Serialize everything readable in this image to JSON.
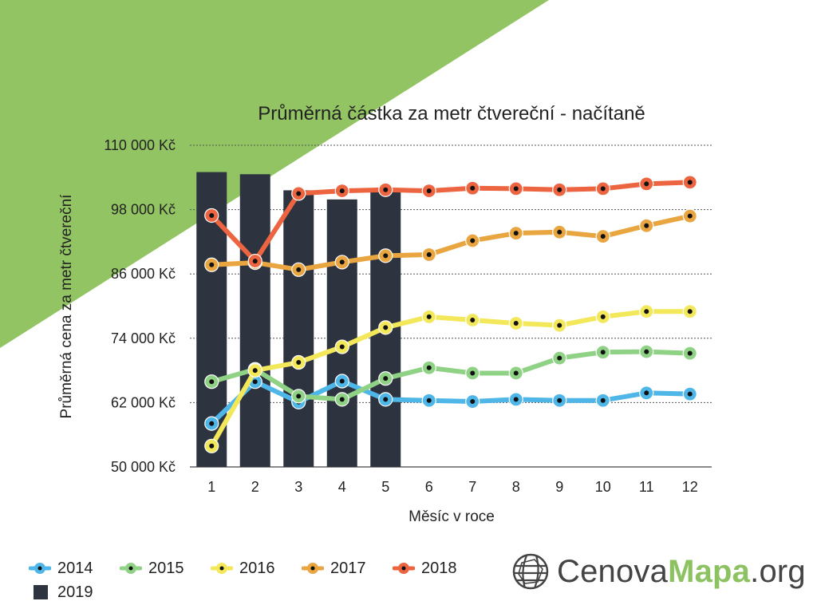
{
  "chart_data": {
    "type": "bar+line",
    "title": "Průměrná částka za metr čtvereční - načítaně",
    "xlabel": "Měsíc v roce",
    "ylabel": "Průměrná cena za metr čtvereční",
    "ylim": [
      50000,
      110000
    ],
    "yticks": [
      "50 000 Kč",
      "62 000 Kč",
      "74 000 Kč",
      "86 000 Kč",
      "98 000 Kč",
      "110 000 Kč"
    ],
    "yticks_values": [
      50000,
      62000,
      74000,
      86000,
      98000,
      110000
    ],
    "categories": [
      "1",
      "2",
      "3",
      "4",
      "5",
      "6",
      "7",
      "8",
      "9",
      "10",
      "11",
      "12"
    ],
    "grid": "horizontal dotted",
    "legend_position": "bottom-left",
    "bar_series": {
      "name": "2019",
      "color": "#2e3340",
      "values": [
        105000,
        104600,
        101600,
        99900,
        101900
      ]
    },
    "series": [
      {
        "name": "2014",
        "color": "#4fb6e8",
        "values": [
          58100,
          65900,
          62100,
          66000,
          62600,
          62400,
          62200,
          62600,
          62400,
          62400,
          63800,
          63600
        ]
      },
      {
        "name": "2015",
        "color": "#8fd285",
        "values": [
          65900,
          68200,
          63200,
          62600,
          66500,
          68500,
          67500,
          67500,
          70300,
          71400,
          71500,
          71200
        ]
      },
      {
        "name": "2016",
        "color": "#f2e85a",
        "values": [
          53900,
          68000,
          69500,
          72400,
          76000,
          78000,
          77400,
          76800,
          76400,
          78000,
          79000,
          79000
        ]
      },
      {
        "name": "2017",
        "color": "#e8a540",
        "values": [
          87700,
          88100,
          86800,
          88200,
          89400,
          89600,
          92200,
          93600,
          93800,
          93000,
          95000,
          96800
        ]
      },
      {
        "name": "2018",
        "color": "#ec6440",
        "values": [
          96900,
          88400,
          101000,
          101500,
          101700,
          101500,
          102000,
          101900,
          101700,
          101900,
          102800,
          103100
        ]
      }
    ]
  },
  "legend": {
    "items": [
      {
        "label": "2014",
        "color": "#4fb6e8",
        "kind": "line"
      },
      {
        "label": "2015",
        "color": "#8fd285",
        "kind": "line"
      },
      {
        "label": "2016",
        "color": "#f2e85a",
        "kind": "line"
      },
      {
        "label": "2017",
        "color": "#e8a540",
        "kind": "line"
      },
      {
        "label": "2018",
        "color": "#ec6440",
        "kind": "line"
      },
      {
        "label": "2019",
        "color": "#2e3340",
        "kind": "bar"
      }
    ]
  },
  "logo": {
    "part1": "Cenova",
    "part2": "Mapa",
    "part3": ".org",
    "icon": "globe-grid-icon"
  },
  "background": {
    "accent": "#92c463"
  }
}
